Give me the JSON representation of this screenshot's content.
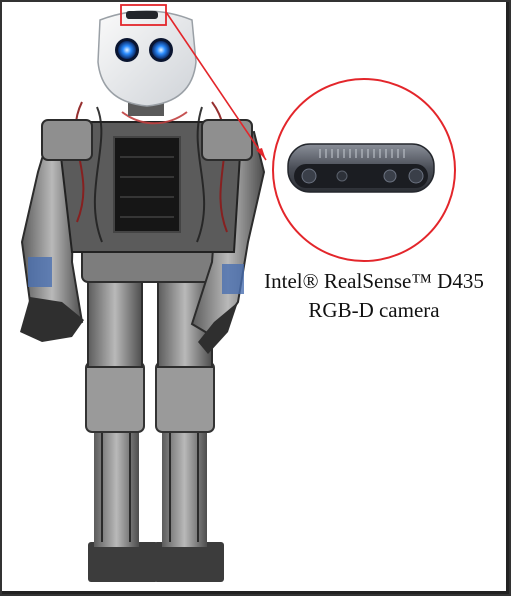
{
  "figure": {
    "callout": {
      "line1": "Intel® RealSense™ D435",
      "line2": "RGB-D camera",
      "highlight_color": "#e3262b"
    },
    "colors": {
      "background": "#ffffff",
      "eye_glow": "#2a8cff",
      "camera_body": "#4a4e57"
    }
  }
}
